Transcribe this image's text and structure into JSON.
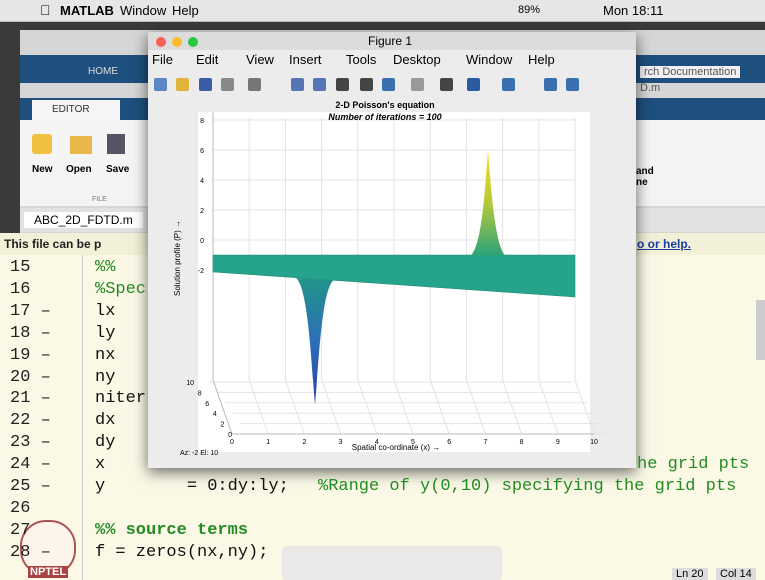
{
  "menubar": {
    "app": "MATLAB",
    "items": [
      "Window",
      "Help"
    ],
    "battery": "89%",
    "clock": "Mon 18:11"
  },
  "desktop": {
    "home_tab": "HOME",
    "editor_tab": "EDITOR",
    "buttons": [
      "New",
      "Open",
      "Save"
    ],
    "section": "FILE",
    "file_tab": "ABC_2D_FDTD.m",
    "info": "This file can be p",
    "info_link": "o or help.",
    "search": "rch Documentation",
    "path": "D.m",
    "right_buttons": [
      "and",
      "ne"
    ]
  },
  "editor": {
    "lines": [
      {
        "num": "15",
        "code": "%%",
        "comment": true
      },
      {
        "num": "16",
        "code": "%Spec",
        "comment": true
      },
      {
        "num": "17 –",
        "code": "lx"
      },
      {
        "num": "18 –",
        "code": "ly"
      },
      {
        "num": "19 –",
        "code": "nx"
      },
      {
        "num": "20 –",
        "code": "ny"
      },
      {
        "num": "21 –",
        "code": "niter"
      },
      {
        "num": "22 –",
        "code": "dx"
      },
      {
        "num": "23 –",
        "code": "dy"
      },
      {
        "num": "24 –",
        "code": "x",
        "tail": "he grid pts"
      },
      {
        "num": "25 –",
        "code": "y        = 0:dy:ly;",
        "tail": "%Range of y(0,10) specifying the grid pts"
      },
      {
        "num": "26"
      },
      {
        "num": "27",
        "code": "%% source terms",
        "comment": true
      },
      {
        "num": "28 –",
        "code": "f = zeros(nx,ny);"
      }
    ]
  },
  "status": {
    "line": "Ln 20",
    "col": "Col 14"
  },
  "logo": "NPTEL",
  "figure": {
    "title": "Figure 1",
    "menu": [
      "File",
      "Edit",
      "View",
      "Insert",
      "Tools",
      "Desktop",
      "Window",
      "Help"
    ],
    "plot": {
      "title": "2-D Poisson's equation",
      "subtitle": "Number of iterations = 100",
      "zlabel": "Solution profile (P) →",
      "xlabel": "Spatial co-ordinate (x) →",
      "zticks": [
        8,
        6,
        4,
        2,
        0,
        -2
      ],
      "yticks": [
        10,
        8,
        6,
        4,
        2,
        0
      ],
      "xticks": [
        0,
        1,
        2,
        3,
        4,
        5,
        6,
        7,
        8,
        9,
        10
      ],
      "view": "Az: -2 El: 10"
    }
  }
}
